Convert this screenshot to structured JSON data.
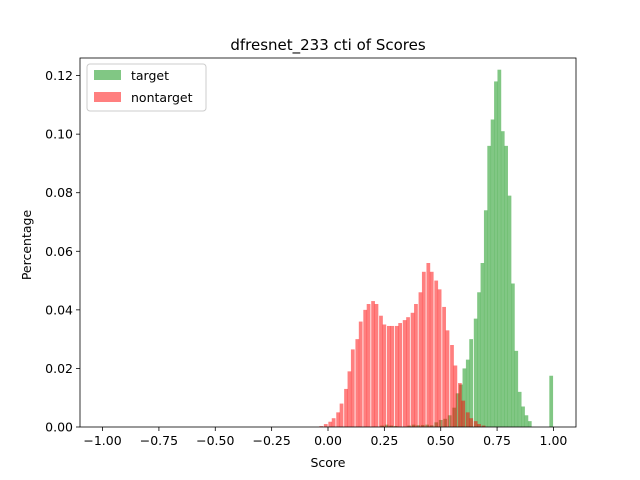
{
  "chart_data": {
    "type": "histogram",
    "title": "dfresnet_233 cti of Scores",
    "xlabel": "Score",
    "ylabel": "Percentage",
    "xlim": [
      -1.1,
      1.1
    ],
    "ylim": [
      0,
      0.126
    ],
    "xticks": [
      -1.0,
      -0.75,
      -0.5,
      -0.25,
      0.0,
      0.25,
      0.5,
      0.75,
      1.0
    ],
    "xtick_labels": [
      "−1.00",
      "−0.75",
      "−0.50",
      "−0.25",
      "0.00",
      "0.25",
      "0.50",
      "0.75",
      "1.00"
    ],
    "yticks": [
      0.0,
      0.02,
      0.04,
      0.06,
      0.08,
      0.1,
      0.12
    ],
    "ytick_labels": [
      "0.00",
      "0.02",
      "0.04",
      "0.06",
      "0.08",
      "0.10",
      "0.12"
    ],
    "legend_position": "top-left",
    "bin_width": 0.0166,
    "series": [
      {
        "name": "target",
        "color": "#4caf50",
        "alpha": 0.7,
        "bins": [
          [
            0.24,
            0.0005
          ],
          [
            0.26,
            0.0008
          ],
          [
            0.28,
            0.0005
          ],
          [
            0.3,
            0.0003
          ],
          [
            0.36,
            0.0005
          ],
          [
            0.38,
            0.0008
          ],
          [
            0.4,
            0.0006
          ],
          [
            0.42,
            0.0007
          ],
          [
            0.44,
            0.0008
          ],
          [
            0.46,
            0.0006
          ],
          [
            0.48,
            0.0016
          ],
          [
            0.5,
            0.0024
          ],
          [
            0.52,
            0.0028
          ],
          [
            0.54,
            0.004
          ],
          [
            0.56,
            0.0066
          ],
          [
            0.575,
            0.0115
          ],
          [
            0.59,
            0.0145
          ],
          [
            0.605,
            0.02
          ],
          [
            0.62,
            0.023
          ],
          [
            0.635,
            0.03
          ],
          [
            0.655,
            0.037
          ],
          [
            0.67,
            0.046
          ],
          [
            0.685,
            0.056
          ],
          [
            0.7,
            0.074
          ],
          [
            0.715,
            0.096
          ],
          [
            0.73,
            0.105
          ],
          [
            0.745,
            0.118
          ],
          [
            0.76,
            0.122
          ],
          [
            0.775,
            0.101
          ],
          [
            0.79,
            0.096
          ],
          [
            0.805,
            0.079
          ],
          [
            0.82,
            0.049
          ],
          [
            0.835,
            0.026
          ],
          [
            0.85,
            0.012
          ],
          [
            0.865,
            0.007
          ],
          [
            0.88,
            0.004
          ],
          [
            0.895,
            0.002
          ],
          [
            0.99,
            0.0175
          ]
        ]
      },
      {
        "name": "nontarget",
        "color": "#ff0000",
        "alpha": 0.5,
        "bins": [
          [
            -0.03,
            0.0003
          ],
          [
            -0.01,
            0.001
          ],
          [
            0.01,
            0.0018
          ],
          [
            0.025,
            0.003
          ],
          [
            0.045,
            0.005
          ],
          [
            0.06,
            0.008
          ],
          [
            0.08,
            0.013
          ],
          [
            0.095,
            0.019
          ],
          [
            0.11,
            0.0265
          ],
          [
            0.13,
            0.03
          ],
          [
            0.145,
            0.036
          ],
          [
            0.165,
            0.04
          ],
          [
            0.18,
            0.042
          ],
          [
            0.2,
            0.043
          ],
          [
            0.215,
            0.042
          ],
          [
            0.235,
            0.038
          ],
          [
            0.25,
            0.035
          ],
          [
            0.27,
            0.0345
          ],
          [
            0.285,
            0.0345
          ],
          [
            0.305,
            0.0345
          ],
          [
            0.32,
            0.0355
          ],
          [
            0.34,
            0.0365
          ],
          [
            0.355,
            0.0375
          ],
          [
            0.375,
            0.039
          ],
          [
            0.39,
            0.042
          ],
          [
            0.41,
            0.046
          ],
          [
            0.425,
            0.053
          ],
          [
            0.445,
            0.056
          ],
          [
            0.46,
            0.053
          ],
          [
            0.48,
            0.05
          ],
          [
            0.495,
            0.047
          ],
          [
            0.515,
            0.041
          ],
          [
            0.53,
            0.033
          ],
          [
            0.55,
            0.028
          ],
          [
            0.565,
            0.021
          ],
          [
            0.585,
            0.015
          ],
          [
            0.6,
            0.009
          ],
          [
            0.62,
            0.005
          ],
          [
            0.635,
            0.003
          ],
          [
            0.655,
            0.002
          ],
          [
            0.67,
            0.001
          ],
          [
            0.69,
            0.0005
          ]
        ]
      }
    ]
  }
}
